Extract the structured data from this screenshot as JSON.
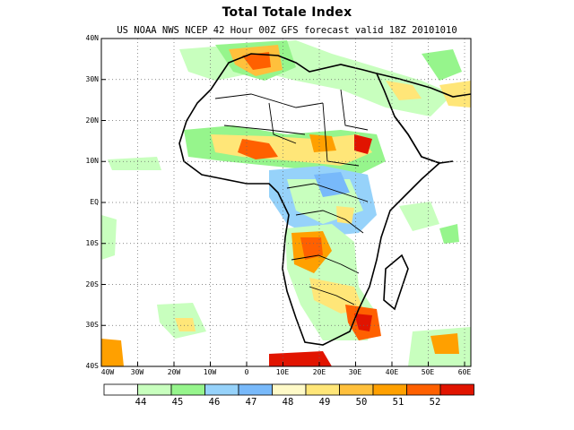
{
  "title": "Total Totale Index",
  "subtitle": "US NOAA NWS NCEP 42 Hour 00Z GFS forecast valid 18Z 20101010",
  "map": {
    "lat_labels": [
      "40N",
      "30N",
      "20N",
      "10N",
      "EQ",
      "10S",
      "20S",
      "30S",
      "40S"
    ],
    "lon_labels": [
      "40W",
      "30W",
      "20W",
      "10W",
      "0",
      "10E",
      "20E",
      "30E",
      "40E",
      "50E",
      "60E"
    ]
  },
  "colorbar": {
    "colors": [
      "#ffffff",
      "#c8ffbe",
      "#96f58c",
      "#96d2fa",
      "#78b9fa",
      "#fffac8",
      "#ffe678",
      "#ffc03c",
      "#ffa000",
      "#ff6000",
      "#e11400"
    ],
    "labels": [
      "44",
      "45",
      "46",
      "47",
      "48",
      "49",
      "50",
      "51",
      "52"
    ]
  }
}
